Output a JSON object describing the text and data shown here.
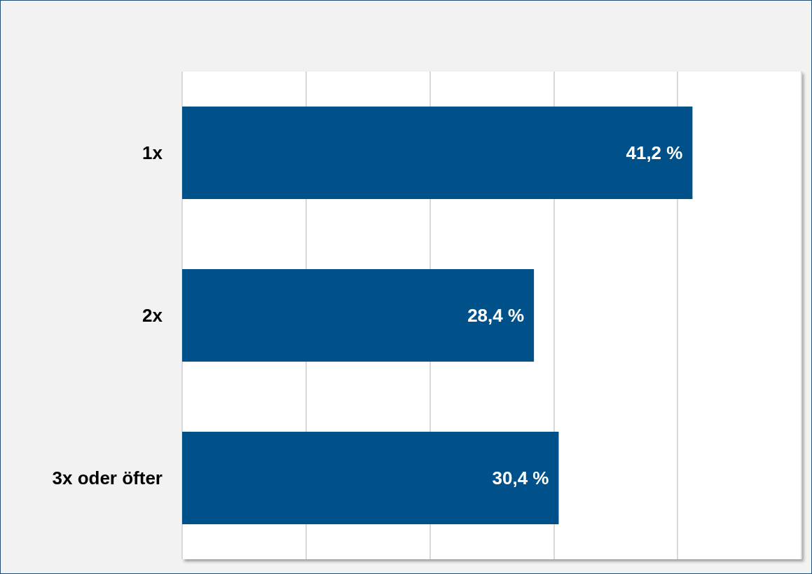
{
  "chart_data": {
    "type": "bar",
    "orientation": "horizontal",
    "categories": [
      "1x",
      "2x",
      "3x oder öfter"
    ],
    "values": [
      41.2,
      28.4,
      30.4
    ],
    "color": "#00508a",
    "value_labels": [
      "41,2 %",
      "28,4 %",
      "30,4 %"
    ],
    "xlim": [
      0,
      50
    ],
    "xticks": [
      {
        "value": 0,
        "label": null
      },
      {
        "value": 10,
        "label": null
      },
      {
        "value": 20,
        "label": null
      },
      {
        "value": 30,
        "label": null
      },
      {
        "value": 40,
        "label": null
      },
      {
        "value": 50,
        "label": null
      }
    ],
    "grid": "x",
    "tick_labels": "y"
  }
}
